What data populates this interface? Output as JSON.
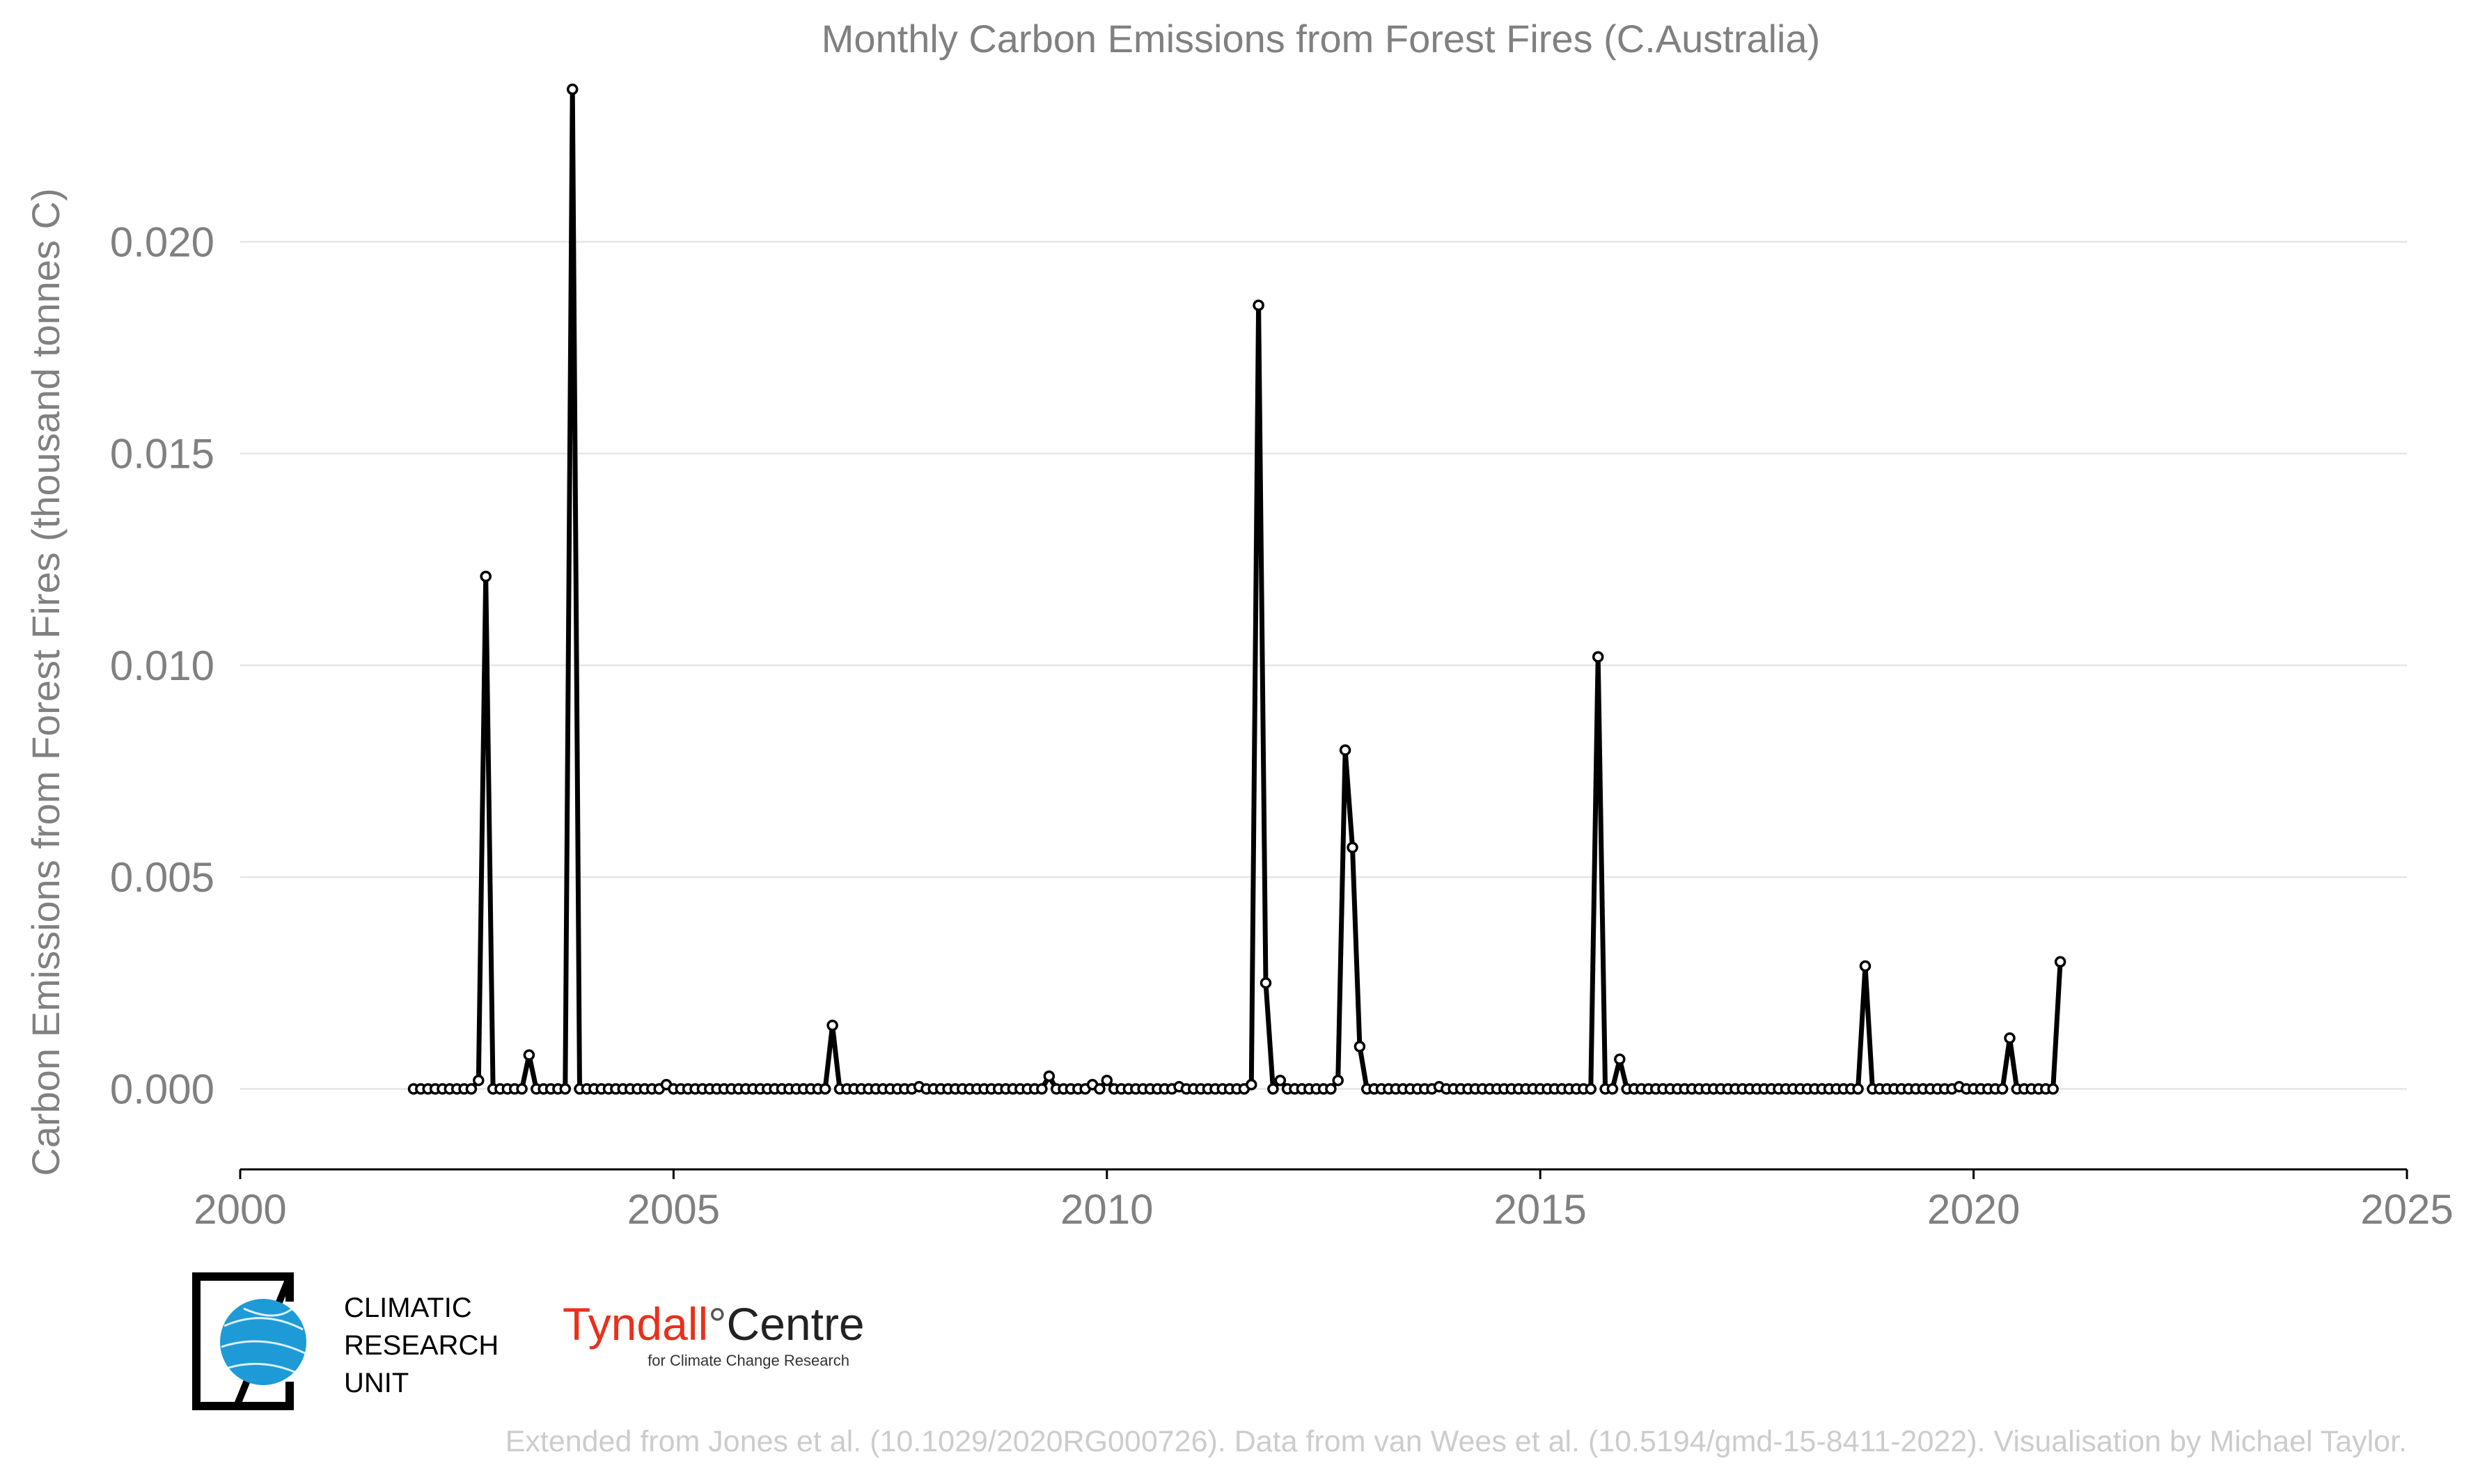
{
  "chart_data": {
    "type": "line",
    "title": "Monthly Carbon Emissions from Forest Fires (C.Australia)",
    "xlabel": "",
    "ylabel": "Carbon Emissions from Forest Fires (thousand tonnes C)",
    "xlim": [
      2000,
      2025
    ],
    "ylim": [
      -0.0019,
      0.0239
    ],
    "xticks": [
      2000,
      2005,
      2010,
      2015,
      2020,
      2025
    ],
    "yticks": [
      0.0,
      0.005,
      0.01,
      0.015,
      0.02
    ],
    "ytick_labels": [
      "0.000",
      "0.005",
      "0.010",
      "0.015",
      "0.020"
    ],
    "grid": "horizontal",
    "legend": "none",
    "line_color": "#000000",
    "start": "2002-01",
    "frequency": "monthly",
    "values": [
      0,
      0,
      0,
      0,
      0,
      0,
      0,
      0,
      0,
      0.0002,
      0.0121,
      0,
      0,
      0,
      0,
      0,
      0.0008,
      0,
      0,
      0,
      0,
      0,
      0.0236,
      0,
      0,
      0,
      0,
      0,
      0,
      0,
      0,
      0,
      0,
      0,
      0,
      0.0001,
      0,
      0,
      0,
      0,
      0,
      0,
      0,
      0,
      0,
      0,
      0,
      0,
      0,
      0,
      0,
      0,
      0,
      0,
      0,
      0,
      0,
      0,
      0.0015,
      0,
      0,
      0,
      0,
      0,
      0,
      0,
      0,
      0,
      0,
      0,
      5e-05,
      0,
      0,
      0,
      0,
      0,
      0,
      0,
      0,
      0,
      0,
      0,
      0,
      0,
      0,
      0,
      0,
      0,
      0.0003,
      0,
      0,
      0,
      0,
      0,
      0.0001,
      0,
      0.0002,
      0,
      0,
      0,
      0,
      0,
      0,
      0,
      0,
      0,
      5e-05,
      0,
      0,
      0,
      0,
      0,
      0,
      0,
      0,
      0,
      0.0001,
      0.0185,
      0.0025,
      0,
      0.0002,
      0,
      0,
      0,
      0,
      0,
      0,
      0,
      0.0002,
      0.008,
      0.0057,
      0.001,
      0,
      0,
      0,
      0,
      0,
      0,
      0,
      0,
      0,
      0,
      5e-05,
      0,
      0,
      0,
      0,
      0,
      0,
      0,
      0,
      0,
      0,
      0,
      0,
      0,
      0,
      0,
      0,
      0,
      0,
      0,
      0,
      0,
      0.0102,
      0,
      0,
      0.0007,
      0,
      0,
      0,
      0,
      0,
      0,
      0,
      0,
      0,
      0,
      0,
      0,
      0,
      0,
      0,
      0,
      0,
      0,
      0,
      0,
      0,
      0,
      0,
      0,
      0,
      0,
      0,
      0,
      0,
      0,
      0,
      0,
      0,
      0.0029,
      0,
      0,
      0,
      0,
      0,
      0,
      0,
      0,
      0,
      0,
      0,
      0,
      5e-05,
      0,
      0,
      0,
      0,
      0,
      0,
      0.0012,
      0,
      0,
      0,
      0,
      0,
      0,
      0.003
    ]
  },
  "logos": {
    "cru": {
      "lines": [
        "CLIMATIC",
        "RESEARCH",
        "UNIT"
      ],
      "globe_color": "#1e9bd7"
    },
    "tyndall": {
      "name": "Tyndall",
      "degree": "°",
      "centre": "Centre",
      "tagline": "for Climate Change Research",
      "accent_color": "#e8301c"
    }
  },
  "credit": "Extended from Jones et al. (10.1029/2020RG000726). Data from van Wees et al. (10.5194/gmd-15-8411-2022). Visualisation by Michael Taylor."
}
